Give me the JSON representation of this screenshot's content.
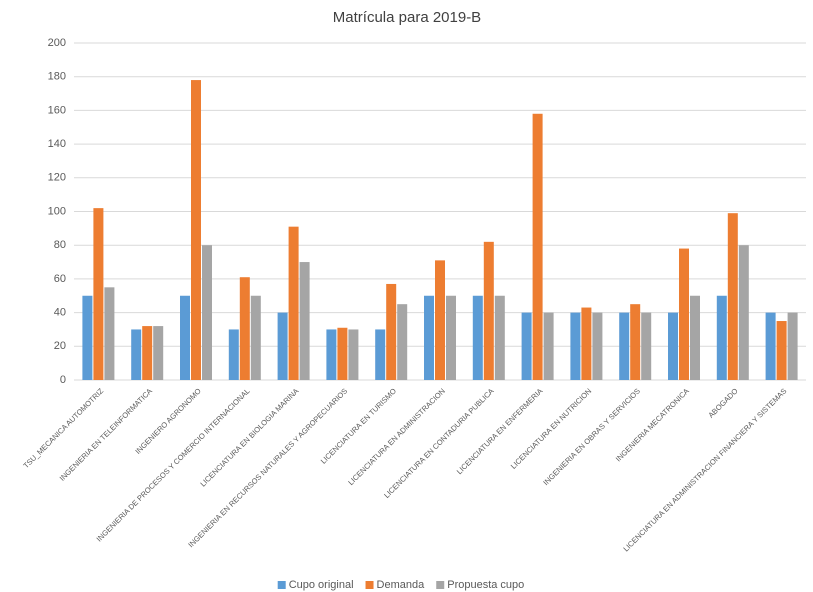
{
  "chart_data": {
    "type": "bar",
    "title": "Matrícula para 2019-B",
    "categories": [
      "TSU_MECANICA AUTOMOTRIZ",
      "INGENIERIA EN TELEINFORMATICA",
      "INGENIERO AGRONOMO",
      "INGENIERIA DE PROCESOS Y COMERCIO INTERNACIONAL",
      "LICENCIATURA EN BIOLOGIA MARINA",
      "INGENIERIA EN RECURSOS NATURALES Y AGROPECUARIOS",
      "LICENCIATURA EN TURISMO",
      "LICENCIATURA EN ADMINISTRACION",
      "LICENCIATURA EN CONTADURIA PUBLICA",
      "LICENCIATURA EN ENFERMERIA",
      "LICENCIATURA EN NUTRICION",
      "INGENIERIA EN OBRAS Y SERVICIOS",
      "INGENIERIA MECATRONICA",
      "ABOGADO",
      "LICENCIATURA EN ADMINISTRACION FINANCIERA Y SISTEMAS"
    ],
    "series": [
      {
        "name": "Cupo original",
        "color": "#5b9bd5",
        "values": [
          50,
          30,
          50,
          30,
          40,
          30,
          30,
          50,
          50,
          40,
          40,
          40,
          40,
          50,
          40
        ]
      },
      {
        "name": "Demanda",
        "color": "#ed7d31",
        "values": [
          102,
          32,
          178,
          61,
          91,
          31,
          57,
          71,
          82,
          158,
          43,
          45,
          78,
          99,
          35
        ]
      },
      {
        "name": "Propuesta cupo",
        "color": "#a5a5a5",
        "values": [
          55,
          32,
          80,
          50,
          70,
          30,
          45,
          50,
          50,
          40,
          40,
          40,
          50,
          80,
          40
        ]
      }
    ],
    "ylim": [
      0,
      200
    ],
    "yticks": [
      0,
      20,
      40,
      60,
      80,
      100,
      120,
      140,
      160,
      180,
      200
    ],
    "grid": true,
    "legend": "bottom"
  }
}
